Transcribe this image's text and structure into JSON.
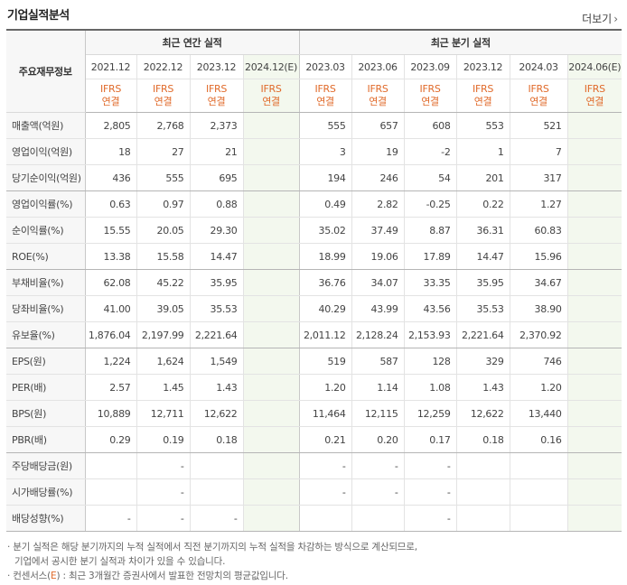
{
  "header": {
    "title": "기업실적분석",
    "more_label": "더보기",
    "more_icon": "chevron-right-icon"
  },
  "table": {
    "row_header_label": "주요재무정보",
    "group_annual": "최근 연간 실적",
    "group_quarter": "최근 분기 실적",
    "ifrs_line1": "IFRS",
    "ifrs_line2": "연결",
    "annual_periods": [
      "2021.12",
      "2022.12",
      "2023.12",
      "2024.12(E)"
    ],
    "quarter_periods": [
      "2023.03",
      "2023.06",
      "2023.09",
      "2023.12",
      "2024.03",
      "2024.06(E)"
    ],
    "rows": [
      {
        "label": "매출액(억원)",
        "annual": [
          "2,805",
          "2,768",
          "2,373",
          ""
        ],
        "quarter": [
          "555",
          "657",
          "608",
          "553",
          "521",
          ""
        ]
      },
      {
        "label": "영업이익(억원)",
        "annual": [
          "18",
          "27",
          "21",
          ""
        ],
        "quarter": [
          "3",
          "19",
          "-2",
          "1",
          "7",
          ""
        ]
      },
      {
        "label": "당기순이익(억원)",
        "annual": [
          "436",
          "555",
          "695",
          ""
        ],
        "quarter": [
          "194",
          "246",
          "54",
          "201",
          "317",
          ""
        ]
      },
      {
        "label": "영업이익률(%)",
        "annual": [
          "0.63",
          "0.97",
          "0.88",
          ""
        ],
        "quarter": [
          "0.49",
          "2.82",
          "-0.25",
          "0.22",
          "1.27",
          ""
        ]
      },
      {
        "label": "순이익률(%)",
        "annual": [
          "15.55",
          "20.05",
          "29.30",
          ""
        ],
        "quarter": [
          "35.02",
          "37.49",
          "8.87",
          "36.31",
          "60.83",
          ""
        ]
      },
      {
        "label": "ROE(%)",
        "annual": [
          "13.38",
          "15.58",
          "14.47",
          ""
        ],
        "quarter": [
          "18.99",
          "19.06",
          "17.89",
          "14.47",
          "15.96",
          ""
        ]
      },
      {
        "label": "부채비율(%)",
        "annual": [
          "62.08",
          "45.22",
          "35.95",
          ""
        ],
        "quarter": [
          "36.76",
          "34.07",
          "33.35",
          "35.95",
          "34.67",
          ""
        ]
      },
      {
        "label": "당좌비율(%)",
        "annual": [
          "41.00",
          "39.05",
          "35.53",
          ""
        ],
        "quarter": [
          "40.29",
          "43.99",
          "43.56",
          "35.53",
          "38.90",
          ""
        ]
      },
      {
        "label": "유보율(%)",
        "annual": [
          "1,876.04",
          "2,197.99",
          "2,221.64",
          ""
        ],
        "quarter": [
          "2,011.12",
          "2,128.24",
          "2,153.93",
          "2,221.64",
          "2,370.92",
          ""
        ]
      },
      {
        "label": "EPS(원)",
        "annual": [
          "1,224",
          "1,624",
          "1,549",
          ""
        ],
        "quarter": [
          "519",
          "587",
          "128",
          "329",
          "746",
          ""
        ]
      },
      {
        "label": "PER(배)",
        "annual": [
          "2.57",
          "1.45",
          "1.43",
          ""
        ],
        "quarter": [
          "1.20",
          "1.14",
          "1.08",
          "1.43",
          "1.20",
          ""
        ]
      },
      {
        "label": "BPS(원)",
        "annual": [
          "10,889",
          "12,711",
          "12,622",
          ""
        ],
        "quarter": [
          "11,464",
          "12,115",
          "12,259",
          "12,622",
          "13,440",
          ""
        ]
      },
      {
        "label": "PBR(배)",
        "annual": [
          "0.29",
          "0.19",
          "0.18",
          ""
        ],
        "quarter": [
          "0.21",
          "0.20",
          "0.17",
          "0.18",
          "0.16",
          ""
        ]
      },
      {
        "label": "주당배당금(원)",
        "annual": [
          "",
          "-",
          "",
          ""
        ],
        "quarter": [
          "-",
          "-",
          "-",
          "",
          "",
          ""
        ]
      },
      {
        "label": "시가배당률(%)",
        "annual": [
          "",
          "-",
          "",
          ""
        ],
        "quarter": [
          "-",
          "-",
          "-",
          "",
          "",
          ""
        ]
      },
      {
        "label": "배당성향(%)",
        "annual": [
          "-",
          "-",
          "-",
          ""
        ],
        "quarter": [
          "",
          "",
          "-",
          "",
          "",
          ""
        ]
      }
    ]
  },
  "notes": {
    "line1": "분기 실적은 해당 분기까지의 누적 실적에서 직전 분기까지의 누적 실적을 차감하는 방식으로 계산되므로,",
    "line2": "기업에서 공시한 분기 실적과 차이가 있을 수 있습니다.",
    "line3_prefix": "컨센서스(",
    "line3_e": "E",
    "line3_suffix": ") : 최근 3개월간 증권사에서 발표한 전망치의 평균값입니다."
  },
  "colors": {
    "estimate_bg": "#f3f8ee",
    "ifrs_text": "#e06a2a",
    "negative": "#e03030",
    "estimate_mark": "#3b9a3b"
  }
}
